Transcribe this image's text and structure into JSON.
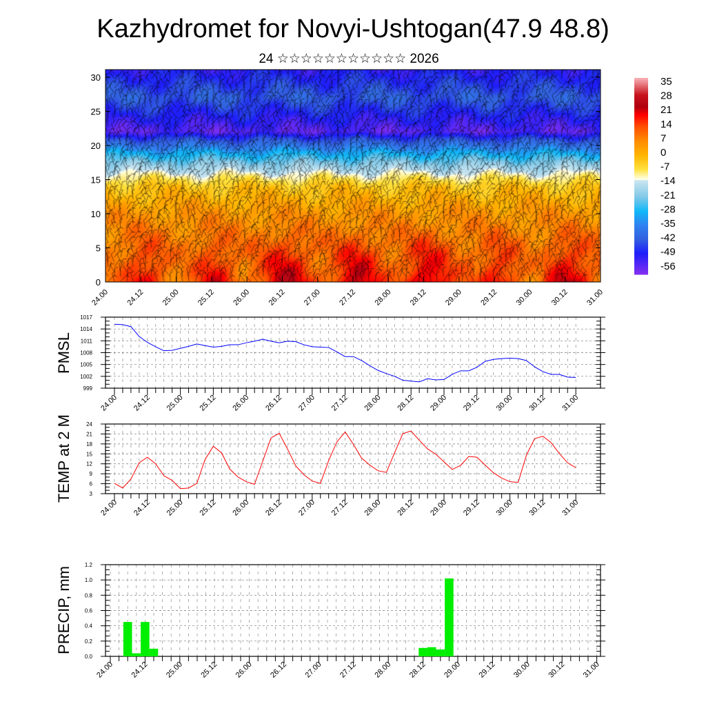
{
  "title": "Kazhydromet for Novyi-Ushtogan(47.9 48.8)",
  "subtitle": "24 ☆☆☆☆☆☆☆☆☆☆☆ 2026",
  "x_labels": [
    "24.00",
    "24.12",
    "25.00",
    "25.12",
    "26.00",
    "26.12",
    "27.00",
    "27.12",
    "28.00",
    "28.12",
    "29.00",
    "29.12",
    "30.00",
    "30.12",
    "31.00"
  ],
  "colors": {
    "pmsl_line": "#0000ff",
    "temp_line": "#ff0000",
    "precip_bar": "#00ee00"
  },
  "chart_data": [
    {
      "type": "heatmap",
      "name": "temperature-height cross-section with wind barbs",
      "xlabel": "",
      "ylabel": "",
      "y_ticks": [
        "0",
        "5",
        "10",
        "15",
        "20",
        "25",
        "30"
      ],
      "ylim": [
        0,
        31
      ],
      "x_ticks": [
        "24.00",
        "24.12",
        "25.00",
        "25.12",
        "26.00",
        "26.12",
        "27.00",
        "27.12",
        "28.00",
        "28.12",
        "29.00",
        "29.12",
        "30.00",
        "30.12",
        "31.00"
      ],
      "colorbar_labels": [
        "35",
        "28",
        "21",
        "14",
        "7",
        "0",
        "-7",
        "-14",
        "-21",
        "-28",
        "-35",
        "-42",
        "-49",
        "-56"
      ],
      "colorbar_range": [
        -60,
        38
      ],
      "profile_heights": [
        0,
        5,
        10,
        14,
        15.5,
        17,
        19,
        21,
        22,
        24,
        27,
        31
      ],
      "profile_temps_mean": [
        14,
        11,
        5,
        -3,
        -10,
        -18,
        -30,
        -45,
        -55,
        -50,
        -42,
        -50
      ]
    },
    {
      "type": "line",
      "name": "PMSL",
      "ylabel": "PMSL",
      "y_ticks": [
        "1017",
        "1014",
        "1011",
        "1008",
        "1005",
        "1002",
        "999"
      ],
      "ylim": [
        999,
        1017
      ],
      "x_step_hours": 3,
      "values": [
        1015.2,
        1015.1,
        1014.6,
        1012.1,
        1010.6,
        1009.5,
        1008.5,
        1008.6,
        1009.1,
        1009.6,
        1010.2,
        1009.8,
        1009.4,
        1009.6,
        1010.0,
        1010.0,
        1010.5,
        1010.9,
        1011.4,
        1010.9,
        1010.5,
        1010.9,
        1010.8,
        1010.0,
        1009.5,
        1009.4,
        1009.3,
        1008.2,
        1007.0,
        1007.0,
        1006.0,
        1004.7,
        1003.5,
        1002.7,
        1002.0,
        1001.0,
        1000.8,
        1000.6,
        1001.4,
        1001.1,
        1001.2,
        1002.5,
        1003.4,
        1003.4,
        1004.3,
        1005.8,
        1006.3,
        1006.5,
        1006.6,
        1006.5,
        1006.0,
        1004.4,
        1003.2,
        1002.5,
        1002.5,
        1001.8,
        1001.7
      ]
    },
    {
      "type": "line",
      "name": "TEMP at 2 M",
      "ylabel": "TEMP at 2 M",
      "y_ticks": [
        "24",
        "21",
        "18",
        "15",
        "12",
        "9",
        "6",
        "3"
      ],
      "ylim": [
        3,
        24
      ],
      "x_step_hours": 3,
      "values": [
        6.1,
        4.7,
        7.4,
        12.3,
        14.0,
        12.0,
        8.4,
        7.0,
        4.5,
        4.7,
        6.1,
        13.3,
        17.3,
        15.3,
        10.4,
        8.0,
        6.6,
        5.8,
        12.8,
        19.8,
        21.2,
        16.5,
        11.4,
        8.7,
        6.8,
        6.1,
        13.0,
        18.6,
        21.6,
        17.9,
        13.7,
        11.6,
        9.9,
        9.4,
        15.3,
        21.1,
        21.9,
        19.1,
        16.5,
        14.9,
        12.6,
        10.3,
        11.5,
        14.2,
        14.0,
        11.6,
        9.3,
        7.7,
        6.6,
        6.4,
        14.6,
        19.6,
        20.3,
        18.4,
        15.1,
        12.3,
        10.8
      ]
    },
    {
      "type": "bar",
      "name": "PRECIP",
      "ylabel": "PRECIP, mm",
      "y_ticks": [
        "1.2",
        "1.0",
        "0.8",
        "0.6",
        "0.4",
        "0.2",
        "0.0"
      ],
      "ylim": [
        0,
        1.2
      ],
      "x_step_hours": 3,
      "values": [
        0,
        0,
        0.45,
        0.04,
        0.45,
        0.1,
        0,
        0,
        0,
        0,
        0,
        0,
        0,
        0,
        0,
        0,
        0,
        0,
        0,
        0,
        0,
        0,
        0,
        0,
        0,
        0,
        0,
        0,
        0,
        0,
        0,
        0,
        0,
        0,
        0,
        0,
        0.11,
        0.12,
        0.09,
        1.02,
        0,
        0,
        0,
        0,
        0,
        0,
        0,
        0,
        0,
        0,
        0,
        0,
        0,
        0,
        0,
        0,
        0
      ]
    }
  ]
}
